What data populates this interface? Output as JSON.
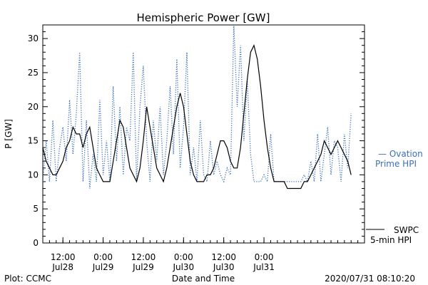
{
  "chart_data": {
    "type": "line",
    "title": "Hemispheric Power [GW]",
    "ylabel": "P [GW]",
    "xlabel": "Date and Time",
    "ylim": [
      0,
      32
    ],
    "yticks": [
      0,
      5,
      10,
      15,
      20,
      25,
      30
    ],
    "xlim_hours_from_start": [
      0,
      96
    ],
    "xticks": [
      {
        "hour": 6,
        "time": "12:00",
        "date": "Jul28"
      },
      {
        "hour": 18,
        "time": "0:00",
        "date": "Jul29"
      },
      {
        "hour": 30,
        "time": "12:00",
        "date": "Jul29"
      },
      {
        "hour": 42,
        "time": "0:00",
        "date": "Jul30"
      },
      {
        "hour": 54,
        "time": "12:00",
        "date": "Jul30"
      },
      {
        "hour": 66,
        "time": "0:00",
        "date": "Jul31"
      }
    ],
    "series": [
      {
        "name": "SWPC 5-min HPI",
        "color": "#000000",
        "style": "solid",
        "points": [
          [
            0,
            14
          ],
          [
            1,
            12
          ],
          [
            2,
            11
          ],
          [
            3,
            10
          ],
          [
            4,
            10
          ],
          [
            5,
            11
          ],
          [
            6,
            12
          ],
          [
            7,
            14
          ],
          [
            8,
            15
          ],
          [
            9,
            17
          ],
          [
            10,
            16
          ],
          [
            11,
            16
          ],
          [
            12,
            14
          ],
          [
            13,
            16
          ],
          [
            14,
            17
          ],
          [
            15,
            14
          ],
          [
            16,
            11
          ],
          [
            17,
            10
          ],
          [
            18,
            9
          ],
          [
            19,
            9
          ],
          [
            20,
            9
          ],
          [
            21,
            12
          ],
          [
            22,
            15
          ],
          [
            23,
            18
          ],
          [
            24,
            17
          ],
          [
            25,
            14
          ],
          [
            26,
            11
          ],
          [
            27,
            10
          ],
          [
            28,
            9
          ],
          [
            29,
            11
          ],
          [
            30,
            15
          ],
          [
            31,
            20
          ],
          [
            32,
            17
          ],
          [
            33,
            14
          ],
          [
            34,
            11
          ],
          [
            35,
            10
          ],
          [
            36,
            9
          ],
          [
            37,
            11
          ],
          [
            38,
            14
          ],
          [
            39,
            17
          ],
          [
            40,
            20
          ],
          [
            41,
            22
          ],
          [
            42,
            20
          ],
          [
            43,
            16
          ],
          [
            44,
            12
          ],
          [
            45,
            10
          ],
          [
            46,
            9
          ],
          [
            47,
            9
          ],
          [
            48,
            9
          ],
          [
            49,
            10
          ],
          [
            50,
            10
          ],
          [
            51,
            11
          ],
          [
            52,
            13
          ],
          [
            53,
            15
          ],
          [
            54,
            15
          ],
          [
            55,
            14
          ],
          [
            56,
            12
          ],
          [
            57,
            11
          ],
          [
            58,
            11
          ],
          [
            59,
            14
          ],
          [
            60,
            19
          ],
          [
            61,
            24
          ],
          [
            62,
            28
          ],
          [
            63,
            29
          ],
          [
            64,
            27
          ],
          [
            65,
            23
          ],
          [
            66,
            18
          ],
          [
            67,
            14
          ],
          [
            68,
            11
          ],
          [
            69,
            9
          ],
          [
            70,
            9
          ],
          [
            71,
            9
          ],
          [
            72,
            9
          ],
          [
            73,
            8
          ],
          [
            74,
            8
          ],
          [
            75,
            8
          ],
          [
            76,
            8
          ],
          [
            77,
            8
          ],
          [
            78,
            9
          ],
          [
            79,
            9
          ],
          [
            80,
            10
          ],
          [
            81,
            11
          ],
          [
            82,
            12
          ],
          [
            83,
            13
          ],
          [
            84,
            15
          ],
          [
            85,
            14
          ],
          [
            86,
            13
          ],
          [
            87,
            14
          ],
          [
            88,
            15
          ],
          [
            89,
            14
          ],
          [
            90,
            13
          ],
          [
            91,
            12
          ],
          [
            92,
            10
          ]
        ]
      },
      {
        "name": "Ovation Prime HPI",
        "color": "#3a6fbf",
        "style": "dotted",
        "points": [
          [
            0,
            9
          ],
          [
            1,
            15
          ],
          [
            2,
            9
          ],
          [
            3,
            18
          ],
          [
            4,
            9
          ],
          [
            5,
            14
          ],
          [
            6,
            17
          ],
          [
            7,
            12
          ],
          [
            8,
            21
          ],
          [
            9,
            13
          ],
          [
            10,
            19
          ],
          [
            11,
            28
          ],
          [
            12,
            9
          ],
          [
            13,
            18
          ],
          [
            14,
            8
          ],
          [
            15,
            13
          ],
          [
            16,
            9
          ],
          [
            17,
            21
          ],
          [
            18,
            10
          ],
          [
            19,
            15
          ],
          [
            20,
            9
          ],
          [
            21,
            23
          ],
          [
            22,
            12
          ],
          [
            23,
            20
          ],
          [
            24,
            10
          ],
          [
            25,
            17
          ],
          [
            26,
            15
          ],
          [
            27,
            28
          ],
          [
            28,
            9
          ],
          [
            29,
            20
          ],
          [
            30,
            26
          ],
          [
            31,
            15
          ],
          [
            32,
            9
          ],
          [
            33,
            18
          ],
          [
            34,
            12
          ],
          [
            35,
            20
          ],
          [
            36,
            10
          ],
          [
            37,
            15
          ],
          [
            38,
            23
          ],
          [
            39,
            13
          ],
          [
            40,
            27
          ],
          [
            41,
            11
          ],
          [
            42,
            17
          ],
          [
            43,
            28
          ],
          [
            44,
            10
          ],
          [
            45,
            14
          ],
          [
            46,
            9
          ],
          [
            47,
            18
          ],
          [
            48,
            10
          ],
          [
            49,
            9
          ],
          [
            50,
            15
          ],
          [
            51,
            10
          ],
          [
            52,
            12
          ],
          [
            53,
            10
          ],
          [
            54,
            9
          ],
          [
            55,
            11
          ],
          [
            56,
            10
          ],
          [
            57,
            32
          ],
          [
            58,
            20
          ],
          [
            59,
            29
          ],
          [
            60,
            15
          ],
          [
            61,
            24
          ],
          [
            62,
            13
          ],
          [
            63,
            9
          ],
          [
            64,
            9
          ],
          [
            65,
            9
          ],
          [
            66,
            10
          ],
          [
            67,
            9
          ],
          [
            68,
            16
          ],
          [
            69,
            9
          ],
          [
            70,
            9
          ],
          [
            71,
            9
          ],
          [
            72,
            9
          ],
          [
            73,
            9
          ],
          [
            74,
            9
          ],
          [
            75,
            9
          ],
          [
            76,
            9
          ],
          [
            77,
            9
          ],
          [
            78,
            10
          ],
          [
            79,
            9
          ],
          [
            80,
            12
          ],
          [
            81,
            9
          ],
          [
            82,
            16
          ],
          [
            83,
            9
          ],
          [
            84,
            13
          ],
          [
            85,
            17
          ],
          [
            86,
            10
          ],
          [
            87,
            15
          ],
          [
            88,
            14
          ],
          [
            89,
            9
          ],
          [
            90,
            16
          ],
          [
            91,
            11
          ],
          [
            92,
            19
          ]
        ]
      }
    ],
    "legend": {
      "ovation_line1": "— Ovation",
      "ovation_line2": "Prime HPI",
      "swpc_line1": "SWPC",
      "swpc_line2": "5-min HPI"
    }
  },
  "footer": {
    "credit": "Plot: CCMC",
    "timestamp": "2020/07/31 08:10:20"
  }
}
